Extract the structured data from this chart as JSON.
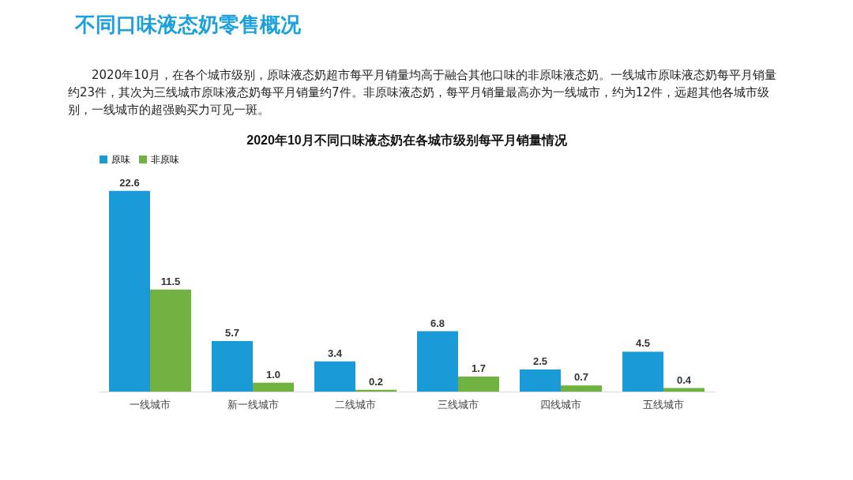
{
  "chart_data": {
    "type": "bar",
    "title": "2020年10月不同口味液态奶在各城市级别每平月销量情况",
    "subtitle": "2020年10月，在各个城市级别，原味液态奶超市每平月销量均高于融合其他口味的非原味液态奶。一线城市原味液态奶每平月销量约23件，其次为三线城市原味液态奶每平月销量约7件。非原味液态奶，每平月销量最高亦为一线城市，约为12件，远超其他各城市级别，一线城市的超强购买力可见一斑。",
    "annotations": [
      "不同口味液态奶零售概况"
    ],
    "categories": [
      "一线城市",
      "新一线城市",
      "二线城市",
      "三线城市",
      "四线城市",
      "五线城市"
    ],
    "series": [
      {
        "name": "原味",
        "color": "#1a9ad6",
        "values": [
          22.6,
          5.7,
          3.4,
          6.8,
          2.5,
          4.5
        ],
        "value_labels": [
          "22.6",
          "5.7",
          "3.4",
          "6.8",
          "2.5",
          "4.5"
        ]
      },
      {
        "name": "非原味",
        "color": "#6fb23f",
        "values": [
          11.5,
          1.0,
          0.2,
          1.7,
          0.7,
          0.4
        ],
        "value_labels": [
          "11.5",
          "1.0",
          "0.2",
          "1.7",
          "0.7",
          "0.4"
        ]
      }
    ],
    "legend": "top",
    "grid": false
  }
}
